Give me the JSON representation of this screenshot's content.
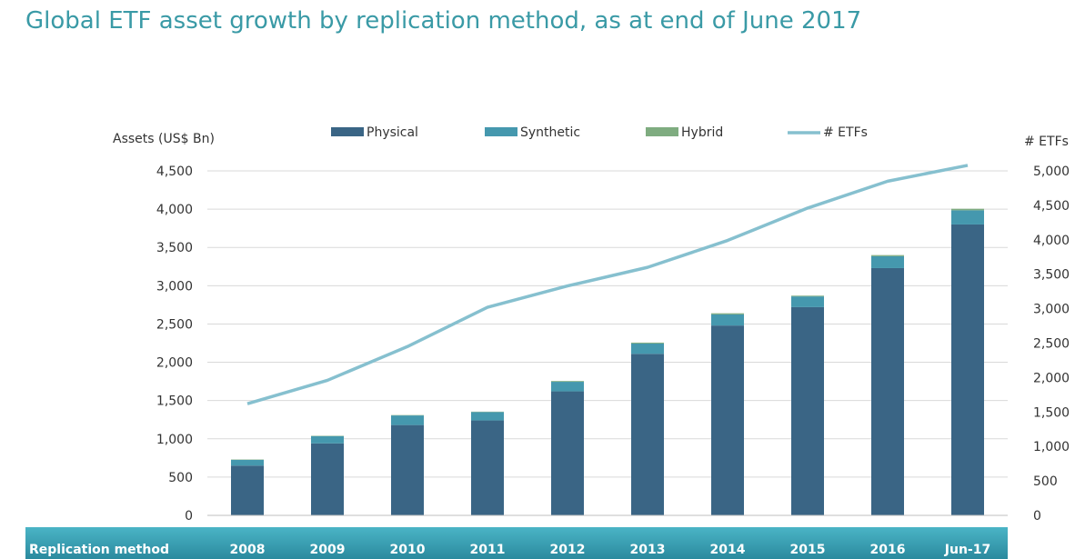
{
  "title": "Global ETF asset growth by replication method, as at end of June 2017",
  "chart_data": {
    "type": "bar",
    "stacked": true,
    "categories": [
      "2008",
      "2009",
      "2010",
      "2011",
      "2012",
      "2013",
      "2014",
      "2015",
      "2016",
      "Jun-17"
    ],
    "series": [
      {
        "name": "Physical",
        "color": "#3a6585",
        "values": [
          650,
          940,
          1180,
          1240,
          1620,
          2110,
          2480,
          2720,
          3230,
          3800
        ]
      },
      {
        "name": "Synthetic",
        "color": "#4598ae",
        "values": [
          75,
          95,
          125,
          110,
          125,
          135,
          145,
          140,
          155,
          185
        ]
      },
      {
        "name": "Hybrid",
        "color": "#7fac80",
        "values": [
          5,
          5,
          5,
          5,
          10,
          12,
          15,
          10,
          15,
          20
        ]
      }
    ],
    "line_series": {
      "name": "# ETFs",
      "color": "#86c0cf",
      "values": [
        1620,
        1960,
        2450,
        3020,
        3330,
        3600,
        3990,
        4460,
        4850,
        5080
      ]
    },
    "ylabel": "Assets (US$ Bn)",
    "ylim": [
      0,
      4500
    ],
    "yticks": [
      "0",
      "500",
      "1,000",
      "1,500",
      "2,000",
      "2,500",
      "3,000",
      "3,500",
      "4,000",
      "4,500"
    ],
    "y2label": "# ETFs",
    "y2lim": [
      0,
      5000
    ],
    "y2ticks": [
      "0",
      "500",
      "1,000",
      "1,500",
      "2,000",
      "2,500",
      "3,000",
      "3,500",
      "4,000",
      "4,500",
      "5,000"
    ],
    "category_header": "Replication method",
    "grid": true,
    "legend_position": "top"
  }
}
